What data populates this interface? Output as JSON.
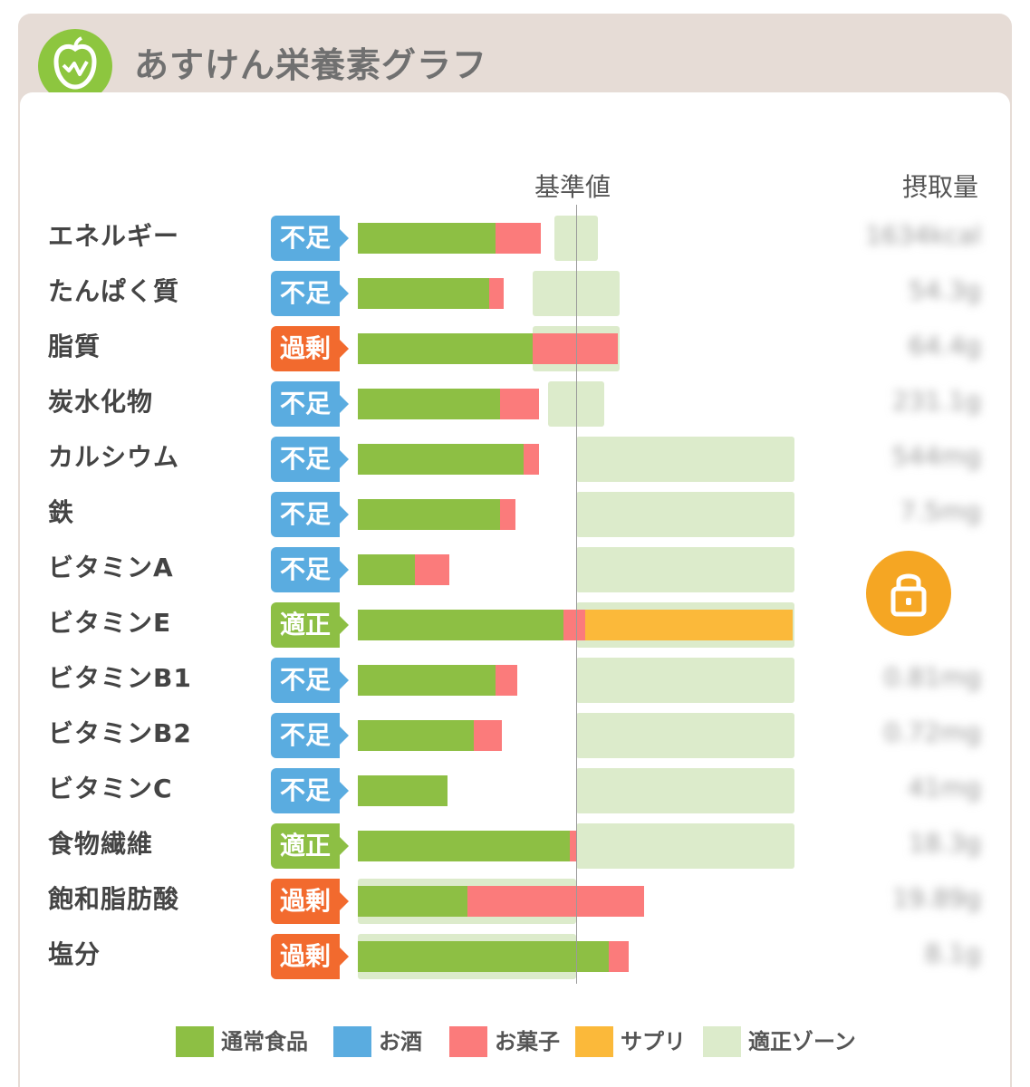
{
  "header": {
    "title": "あすけん栄養素グラフ"
  },
  "columns": {
    "reference": "基準値",
    "intake": "摂取量"
  },
  "colors": {
    "normal_food": "#8dbf44",
    "alcohol": "#5aace0",
    "snack": "#fb7b7b",
    "supplement": "#fbb93a",
    "proper_zone": "#dcebcb"
  },
  "rows": [
    {
      "label": "エネルギー",
      "status": "不足",
      "intake": "1634kcal"
    },
    {
      "label": "たんぱく質",
      "status": "不足",
      "intake": "54.3g"
    },
    {
      "label": "脂質",
      "status": "過剰",
      "intake": "64.4g"
    },
    {
      "label": "炭水化物",
      "status": "不足",
      "intake": "231.1g"
    },
    {
      "label": "カルシウム",
      "status": "不足",
      "intake": "544mg"
    },
    {
      "label": "鉄",
      "status": "不足",
      "intake": "7.5mg"
    },
    {
      "label": "ビタミンA",
      "status": "不足",
      "intake": ""
    },
    {
      "label": "ビタミンE",
      "status": "適正",
      "intake": ""
    },
    {
      "label": "ビタミンB1",
      "status": "不足",
      "intake": "0.81mg"
    },
    {
      "label": "ビタミンB2",
      "status": "不足",
      "intake": "0.72mg"
    },
    {
      "label": "ビタミンC",
      "status": "不足",
      "intake": "41mg"
    },
    {
      "label": "食物繊維",
      "status": "適正",
      "intake": "18.3g"
    },
    {
      "label": "飽和脂肪酸",
      "status": "過剰",
      "intake": "19.89g"
    },
    {
      "label": "塩分",
      "status": "過剰",
      "intake": "8.1g"
    }
  ],
  "legend": [
    {
      "label": "通常食品",
      "color": "#8dbf44"
    },
    {
      "label": "お酒",
      "color": "#5aace0"
    },
    {
      "label": "お菓子",
      "color": "#fb7b7b"
    },
    {
      "label": "サプリ",
      "color": "#fbb93a"
    },
    {
      "label": "適正ゾーン",
      "color": "#dcebcb"
    }
  ],
  "chart_data": {
    "type": "bar",
    "reference": 100,
    "categories": [
      "エネルギー",
      "たんぱく質",
      "脂質",
      "炭水化物",
      "カルシウム",
      "鉄",
      "ビタミンA",
      "ビタミンE",
      "ビタミンB1",
      "ビタミンB2",
      "ビタミンC",
      "食物繊維",
      "飽和脂肪酸",
      "塩分"
    ],
    "series": [
      {
        "name": "通常食品",
        "values": [
          63,
          60,
          80,
          65,
          76,
          65,
          26,
          94,
          63,
          53,
          41,
          97,
          50,
          115
        ]
      },
      {
        "name": "お菓子",
        "values": [
          21,
          7,
          39,
          18,
          7,
          7,
          16,
          10,
          10,
          13,
          0,
          3,
          81,
          9
        ]
      },
      {
        "name": "サプリ",
        "values": [
          0,
          0,
          0,
          0,
          0,
          0,
          0,
          95,
          0,
          0,
          0,
          0,
          0,
          0
        ]
      }
    ],
    "proper_zone": [
      [
        90,
        110
      ],
      [
        80,
        120
      ],
      [
        80,
        120
      ],
      [
        87,
        113
      ],
      [
        100,
        200
      ],
      [
        100,
        200
      ],
      [
        100,
        200
      ],
      [
        100,
        200
      ],
      [
        100,
        200
      ],
      [
        100,
        200
      ],
      [
        100,
        200
      ],
      [
        100,
        200
      ],
      [
        0,
        100
      ],
      [
        0,
        100
      ]
    ]
  }
}
